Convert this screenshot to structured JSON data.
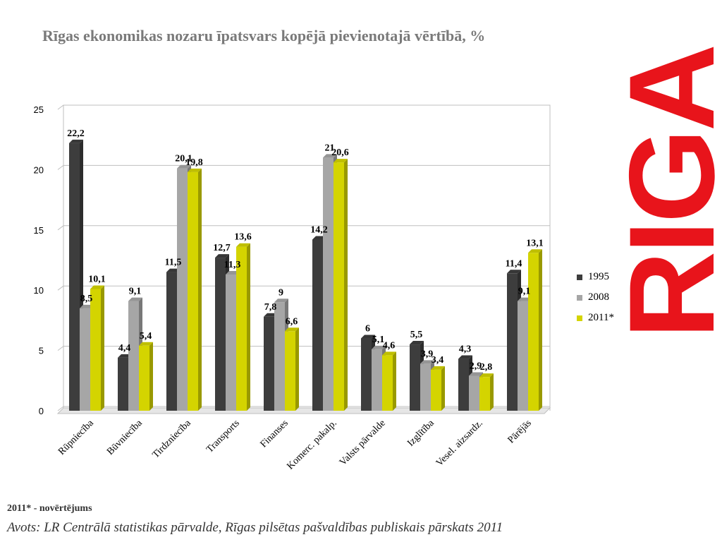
{
  "title": "Rīgas ekonomikas nozaru īpatsvars kopējā pievienotajā vērtībā, %",
  "brand_text": "RIGA",
  "footnote": "2011* - novērtējums",
  "source": "Avots: LR Centrālā statistikas pārvalde, Rīgas pilsētas pašvaldības publiskais pārskats 2011",
  "colors": {
    "1995": "#3d3d3d",
    "2008": "#a6a6a6",
    "2011*": "#d4d400",
    "brand": "#e8141b"
  },
  "chart_data": {
    "type": "bar",
    "title": "Rīgas ekonomikas nozaru īpatsvars kopējā pievienotajā vērtībā, %",
    "xlabel": "",
    "ylabel": "",
    "ylim": [
      0,
      25
    ],
    "yticks": [
      "0",
      "5",
      "10",
      "15",
      "20",
      "25"
    ],
    "grid": true,
    "legend_position": "right",
    "categories": [
      "Rūpniecība",
      "Būvniecība",
      "Tirdzniecība",
      "Transports",
      "Finanses",
      "Komerc. pakalp.",
      "Valsts pārvalde",
      "Izglītība",
      "Vesel. aizsardz.",
      "Pārējās"
    ],
    "series": [
      {
        "name": "1995",
        "values": [
          22.2,
          4.4,
          11.5,
          12.7,
          7.8,
          14.2,
          6,
          5.5,
          4.3,
          11.4
        ],
        "labels": [
          "22,2",
          "4,4",
          "11,5",
          "12,7",
          "7,8",
          "14,2",
          "6",
          "5,5",
          "4,3",
          "11,4"
        ]
      },
      {
        "name": "2008",
        "values": [
          8.5,
          9.1,
          20.1,
          11.3,
          9,
          21,
          5.1,
          3.9,
          2.9,
          9.1
        ],
        "labels": [
          "8,5",
          "9,1",
          "20,1",
          "11,3",
          "9",
          "21",
          "5,1",
          "3,9",
          "2,9",
          "9,1"
        ]
      },
      {
        "name": "2011*",
        "values": [
          10.1,
          5.4,
          19.8,
          13.6,
          6.6,
          20.6,
          4.6,
          3.4,
          2.8,
          13.1
        ],
        "labels": [
          "10,1",
          "5,4",
          "19,8",
          "13,6",
          "6,6",
          "20,6",
          "4,6",
          "3,4",
          "2,8",
          "13,1"
        ]
      }
    ]
  }
}
